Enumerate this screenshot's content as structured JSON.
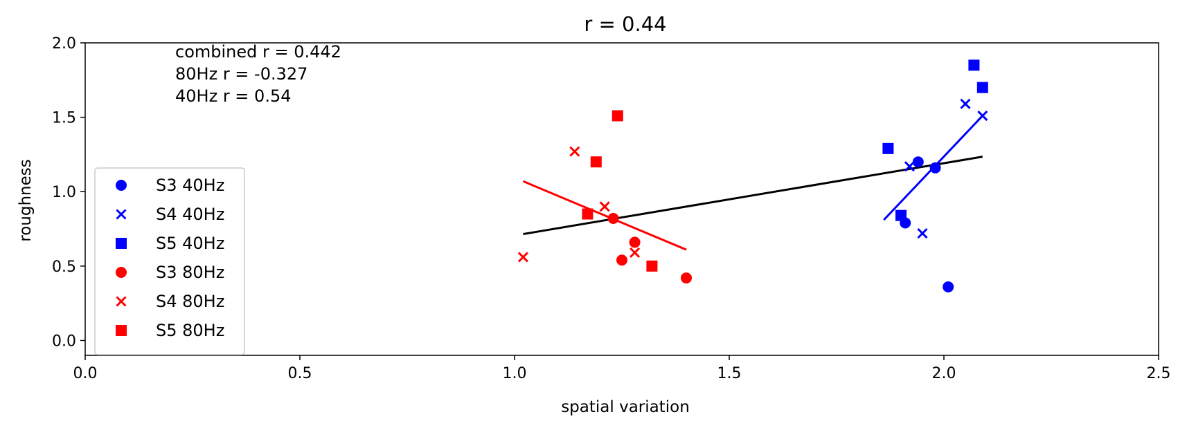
{
  "chart_data": {
    "type": "scatter",
    "title": "r = 0.44",
    "xlabel": "spatial variation",
    "ylabel": "roughness",
    "xlim": [
      0.0,
      2.5
    ],
    "ylim": [
      -0.1,
      2.0
    ],
    "xticks": [
      "0.0",
      "0.5",
      "1.0",
      "1.5",
      "2.0",
      "2.5"
    ],
    "yticks": [
      "0.0",
      "0.5",
      "1.0",
      "1.5",
      "2.0"
    ],
    "grid": false,
    "legend_position": "lower-left",
    "annotations": [
      "combined r = 0.442",
      "80Hz r = -0.327",
      "40Hz r = 0.54"
    ],
    "series": [
      {
        "name": "S3 40Hz",
        "marker": "circle",
        "color": "#0000ff",
        "points": [
          [
            1.94,
            1.2
          ],
          [
            1.98,
            1.16
          ],
          [
            1.91,
            0.79
          ],
          [
            2.01,
            0.36
          ]
        ]
      },
      {
        "name": "S4 40Hz",
        "marker": "x",
        "color": "#0000ff",
        "points": [
          [
            2.05,
            1.59
          ],
          [
            2.09,
            1.51
          ],
          [
            1.92,
            1.17
          ],
          [
            1.95,
            0.72
          ]
        ]
      },
      {
        "name": "S5 40Hz",
        "marker": "square",
        "color": "#0000ff",
        "points": [
          [
            2.07,
            1.85
          ],
          [
            2.09,
            1.7
          ],
          [
            1.87,
            1.29
          ],
          [
            1.9,
            0.84
          ]
        ]
      },
      {
        "name": "S3 80Hz",
        "marker": "circle",
        "color": "#ff0000",
        "points": [
          [
            1.23,
            0.82
          ],
          [
            1.28,
            0.66
          ],
          [
            1.25,
            0.54
          ],
          [
            1.4,
            0.42
          ]
        ]
      },
      {
        "name": "S4 80Hz",
        "marker": "x",
        "color": "#ff0000",
        "points": [
          [
            1.14,
            1.27
          ],
          [
            1.21,
            0.9
          ],
          [
            1.28,
            0.59
          ],
          [
            1.02,
            0.56
          ]
        ]
      },
      {
        "name": "S5 80Hz",
        "marker": "square",
        "color": "#ff0000",
        "points": [
          [
            1.24,
            1.51
          ],
          [
            1.19,
            1.2
          ],
          [
            1.17,
            0.85
          ],
          [
            1.32,
            0.5
          ]
        ]
      }
    ],
    "fit_lines": [
      {
        "label": "combined",
        "color": "#000000",
        "x": [
          1.02,
          2.09
        ],
        "y": [
          0.715,
          1.235
        ]
      },
      {
        "label": "80Hz",
        "color": "#ff0000",
        "x": [
          1.02,
          1.4
        ],
        "y": [
          1.07,
          0.61
        ]
      },
      {
        "label": "40Hz",
        "color": "#0000ff",
        "x": [
          1.86,
          2.09
        ],
        "y": [
          0.81,
          1.51
        ]
      }
    ]
  }
}
